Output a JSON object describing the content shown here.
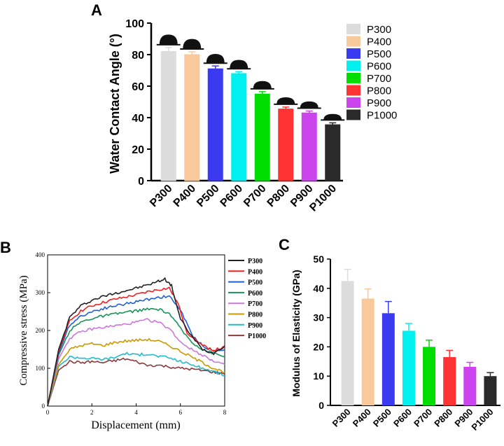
{
  "panel_letters": {
    "a": "A",
    "b": "B",
    "c": "C"
  },
  "chart_data": [
    {
      "id": "A",
      "type": "bar",
      "title": "",
      "ylabel": "Water Contact Angle (°)",
      "xlabel": "",
      "categories": [
        "P300",
        "P400",
        "P500",
        "P600",
        "P700",
        "P800",
        "P900",
        "P1000"
      ],
      "values": [
        82,
        80,
        71,
        68,
        55,
        45.5,
        43,
        35.5
      ],
      "errors": [
        2.5,
        1.8,
        1.8,
        1.2,
        1.5,
        1.2,
        1.2,
        1.2
      ],
      "colors": [
        "#dcdcdc",
        "#f8c99a",
        "#3a3af0",
        "#00f0f0",
        "#00dd00",
        "#ff3333",
        "#cc44ee",
        "#2a2a2a"
      ],
      "ylim": [
        0,
        100
      ],
      "yticks": [
        0,
        20,
        40,
        60,
        80,
        100
      ],
      "legend": [
        "P300",
        "P400",
        "P500",
        "P600",
        "P700",
        "P800",
        "P900",
        "P1000"
      ],
      "legend_placement": "right"
    },
    {
      "id": "B",
      "type": "line",
      "title": "",
      "xlabel": "Displacement (mm)",
      "ylabel": "Compressive stress (MPa)",
      "xlim": [
        0,
        8
      ],
      "ylim": [
        0,
        400
      ],
      "xticks": [
        0,
        2,
        4,
        6,
        8
      ],
      "yticks": [
        0,
        100,
        200,
        300,
        400
      ],
      "legend_placement": "right",
      "series": [
        {
          "name": "P300",
          "color": "#222222",
          "x": [
            0,
            0.5,
            1,
            1.5,
            2,
            2.5,
            3,
            3.5,
            4,
            4.5,
            5,
            5.3,
            5.6,
            6,
            6.5,
            7,
            7.5,
            8
          ],
          "y": [
            0,
            150,
            235,
            265,
            280,
            290,
            298,
            305,
            312,
            320,
            330,
            336,
            318,
            230,
            185,
            150,
            140,
            160
          ]
        },
        {
          "name": "P400",
          "color": "#ee2222",
          "x": [
            0,
            0.5,
            1,
            1.5,
            2,
            2.5,
            3,
            3.5,
            4,
            4.5,
            5,
            5.5,
            5.9,
            6.3,
            7,
            7.5,
            8
          ],
          "y": [
            0,
            145,
            225,
            252,
            265,
            274,
            282,
            288,
            294,
            302,
            308,
            312,
            270,
            195,
            160,
            148,
            155
          ]
        },
        {
          "name": "P500",
          "color": "#1f5fd6",
          "x": [
            0,
            0.5,
            1,
            1.5,
            2,
            2.5,
            3,
            3.5,
            4,
            4.5,
            5,
            5.5,
            6,
            6.5,
            7,
            7.5,
            8
          ],
          "y": [
            0,
            140,
            215,
            238,
            250,
            258,
            265,
            270,
            276,
            282,
            288,
            290,
            255,
            190,
            160,
            145,
            150
          ]
        },
        {
          "name": "P600",
          "color": "#17945a",
          "x": [
            0,
            0.5,
            1,
            1.5,
            2,
            2.5,
            3,
            3.5,
            4,
            4.5,
            5,
            5.5,
            6,
            6.5,
            7,
            7.5,
            8
          ],
          "y": [
            0,
            135,
            200,
            222,
            232,
            238,
            243,
            248,
            252,
            256,
            256,
            245,
            205,
            170,
            150,
            140,
            130
          ]
        },
        {
          "name": "P700",
          "color": "#cc77dd",
          "x": [
            0,
            0.5,
            1,
            1.5,
            2,
            2.5,
            3,
            3.5,
            4,
            4.5,
            5,
            5.5,
            6,
            6.5,
            7,
            7.5,
            8
          ],
          "y": [
            0,
            125,
            180,
            196,
            204,
            208,
            212,
            216,
            222,
            228,
            222,
            205,
            170,
            150,
            135,
            120,
            110
          ]
        },
        {
          "name": "P800",
          "color": "#cc9900",
          "x": [
            0,
            0.5,
            1,
            1.5,
            2,
            2.5,
            3,
            3.5,
            4,
            4.5,
            5,
            5.5,
            6,
            6.5,
            7,
            7.5,
            8
          ],
          "y": [
            0,
            110,
            150,
            160,
            165,
            160,
            168,
            172,
            174,
            176,
            172,
            160,
            145,
            130,
            115,
            100,
            90
          ]
        },
        {
          "name": "P900",
          "color": "#22bbcc",
          "x": [
            0,
            0.5,
            1,
            1.5,
            2,
            2.5,
            3,
            3.5,
            4,
            4.5,
            5,
            5.5,
            6,
            6.5,
            7,
            7.5,
            8
          ],
          "y": [
            0,
            105,
            130,
            128,
            126,
            124,
            128,
            140,
            135,
            138,
            132,
            128,
            118,
            110,
            100,
            92,
            80
          ]
        },
        {
          "name": "P1000",
          "color": "#8b3a3a",
          "x": [
            0,
            0.5,
            1,
            1.5,
            2,
            2.5,
            3,
            3.5,
            4,
            4.5,
            5,
            5.5,
            6,
            6.5,
            7,
            7.5,
            8
          ],
          "y": [
            0,
            95,
            118,
            115,
            118,
            115,
            120,
            125,
            118,
            108,
            108,
            104,
            100,
            98,
            94,
            90,
            85
          ]
        }
      ]
    },
    {
      "id": "C",
      "type": "bar",
      "title": "",
      "ylabel": "Modulus of Elasticity (GPa)",
      "xlabel": "",
      "categories": [
        "P300",
        "P400",
        "P500",
        "P600",
        "P700",
        "P800",
        "P900",
        "P1000"
      ],
      "values": [
        42.5,
        36.5,
        31.5,
        25.5,
        20,
        16.5,
        13.2,
        10
      ],
      "errors": [
        4,
        3.3,
        4,
        2.5,
        2.3,
        2.3,
        1.5,
        1.2
      ],
      "colors": [
        "#dcdcdc",
        "#f8c99a",
        "#3a3af0",
        "#00f0f0",
        "#00dd00",
        "#ff3333",
        "#cc44ee",
        "#2a2a2a"
      ],
      "ylim": [
        0,
        50
      ],
      "yticks": [
        0,
        10,
        20,
        30,
        40,
        50
      ]
    }
  ]
}
